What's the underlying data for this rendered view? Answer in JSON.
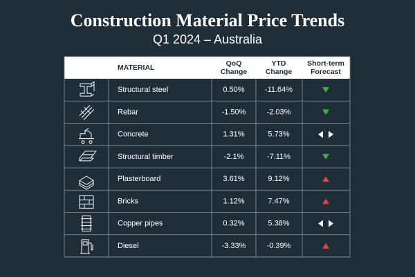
{
  "header": {
    "title": "Construction Material Price Trends",
    "subtitle": "Q1 2024 – Australia"
  },
  "table": {
    "columns": [
      [
        "MATERIAL"
      ],
      [
        "QoQ",
        "Change"
      ],
      [
        "YTD",
        "Change"
      ],
      [
        "Short-term",
        "Forecast"
      ]
    ],
    "rows": [
      [
        "Structural steel",
        "0.50%",
        "-11.64%",
        "down"
      ],
      [
        "Rebar",
        "-1.50%",
        "-2.03%",
        "down"
      ],
      [
        "Concrete",
        "1.31%",
        "5.73%",
        "steady"
      ],
      [
        "Structural timber",
        "-2.1%",
        "-7.11%",
        "down"
      ],
      [
        "Plasterboard",
        "3.61%",
        "9.12%",
        "up"
      ],
      [
        "Bricks",
        "1.12%",
        "7.47%",
        "up"
      ],
      [
        "Copper pipes",
        "0.32%",
        "5.38%",
        "steady"
      ],
      [
        "Diesel",
        "-3.33%",
        "-0.39%",
        "up"
      ]
    ]
  }
}
